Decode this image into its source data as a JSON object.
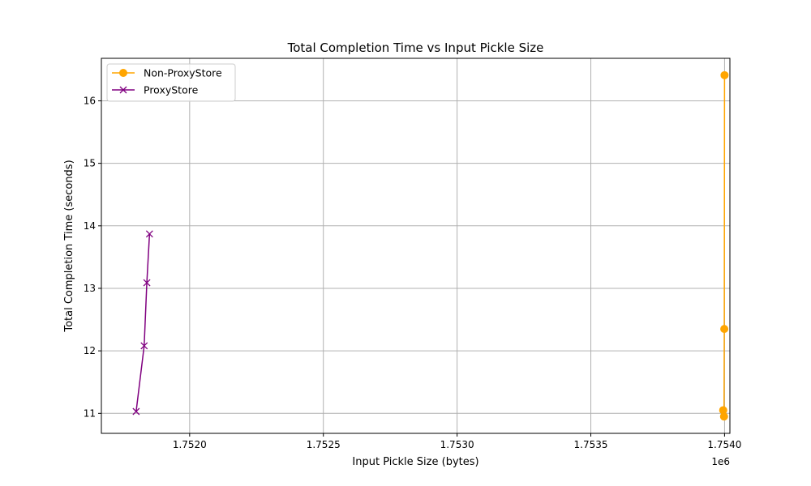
{
  "chart_data": {
    "type": "line",
    "title": "Total Completion Time vs Input Pickle Size",
    "xlabel": "Input Pickle Size (bytes)",
    "ylabel": "Total Completion Time (seconds)",
    "x_offset_label": "1e6",
    "xlim": [
      1.75167,
      1.75402
    ],
    "ylim": [
      10.68,
      16.68
    ],
    "xticks": [
      1.752,
      1.7525,
      1.753,
      1.7535,
      1.754
    ],
    "xtick_labels": [
      "1.7520",
      "1.7525",
      "1.7530",
      "1.7535",
      "1.7540"
    ],
    "yticks": [
      11,
      12,
      13,
      14,
      15,
      16
    ],
    "ytick_labels": [
      "11",
      "12",
      "13",
      "14",
      "15",
      "16"
    ],
    "grid": true,
    "legend_position": "top-left",
    "series": [
      {
        "name": "Non-ProxyStore",
        "color": "#FFA500",
        "marker": "circle",
        "x": [
          1.753995,
          1.753998,
          1.753999,
          1.754
        ],
        "y": [
          11.05,
          10.95,
          12.35,
          16.41
        ]
      },
      {
        "name": "ProxyStore",
        "color": "#800080",
        "marker": "x",
        "x": [
          1.7518,
          1.75183,
          1.75184,
          1.75185
        ],
        "y": [
          11.03,
          12.08,
          13.09,
          13.87
        ]
      }
    ]
  }
}
